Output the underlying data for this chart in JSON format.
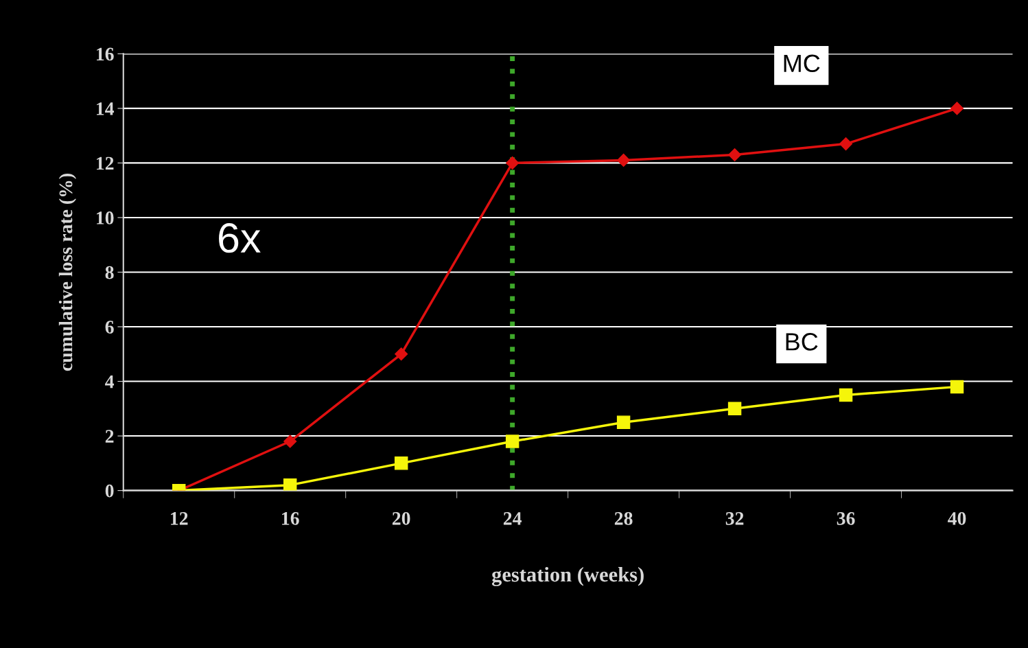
{
  "chart_data": {
    "type": "line",
    "xlabel": "gestation (weeks)",
    "ylabel": "cumulative loss rate (%)",
    "categories": [
      "12",
      "16",
      "20",
      "24",
      "28",
      "32",
      "36",
      "40"
    ],
    "series": [
      {
        "name": "MC",
        "color": "#e01010",
        "marker": "diamond",
        "values": [
          0,
          1.8,
          5.0,
          12.0,
          12.1,
          12.3,
          12.7,
          14.0
        ]
      },
      {
        "name": "BC",
        "color": "#f5f50a",
        "marker": "square",
        "values": [
          0,
          0.2,
          1.0,
          1.8,
          2.5,
          3.0,
          3.5,
          3.8
        ]
      }
    ],
    "ylim": [
      0,
      16
    ],
    "yticks": [
      0,
      2,
      4,
      6,
      8,
      10,
      12,
      14,
      16
    ],
    "grid": "y",
    "ref_lines": [
      {
        "axis": "x",
        "value": "24",
        "color": "#3ea82a",
        "line_style": "dotted"
      }
    ],
    "annotations": [
      "6x"
    ]
  }
}
